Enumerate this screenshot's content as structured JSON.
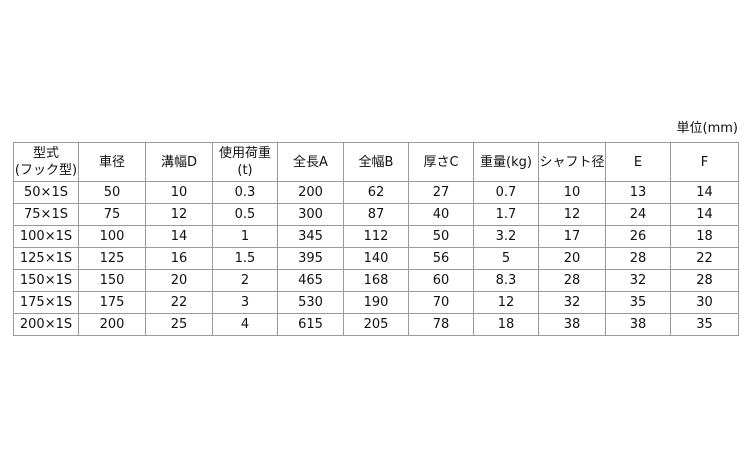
{
  "unit_label": "単位(mm)",
  "table": {
    "headers": [
      [
        "型式",
        "(フック型)"
      ],
      [
        "車径"
      ],
      [
        "溝幅D"
      ],
      [
        "使用荷重",
        "(t)"
      ],
      [
        "全長A"
      ],
      [
        "全幅B"
      ],
      [
        "厚さC"
      ],
      [
        "重量(kg)"
      ],
      [
        "シャフト径"
      ],
      [
        "E"
      ],
      [
        "F"
      ]
    ],
    "rows": [
      [
        "50×1S",
        "50",
        "10",
        "0.3",
        "200",
        "62",
        "27",
        "0.7",
        "10",
        "13",
        "14"
      ],
      [
        "75×1S",
        "75",
        "12",
        "0.5",
        "300",
        "87",
        "40",
        "1.7",
        "12",
        "24",
        "14"
      ],
      [
        "100×1S",
        "100",
        "14",
        "1",
        "345",
        "112",
        "50",
        "3.2",
        "17",
        "26",
        "18"
      ],
      [
        "125×1S",
        "125",
        "16",
        "1.5",
        "395",
        "140",
        "56",
        "5",
        "20",
        "28",
        "22"
      ],
      [
        "150×1S",
        "150",
        "20",
        "2",
        "465",
        "168",
        "60",
        "8.3",
        "28",
        "32",
        "28"
      ],
      [
        "175×1S",
        "175",
        "22",
        "3",
        "530",
        "190",
        "70",
        "12",
        "32",
        "35",
        "30"
      ],
      [
        "200×1S",
        "200",
        "25",
        "4",
        "615",
        "205",
        "78",
        "18",
        "38",
        "38",
        "35"
      ]
    ]
  }
}
